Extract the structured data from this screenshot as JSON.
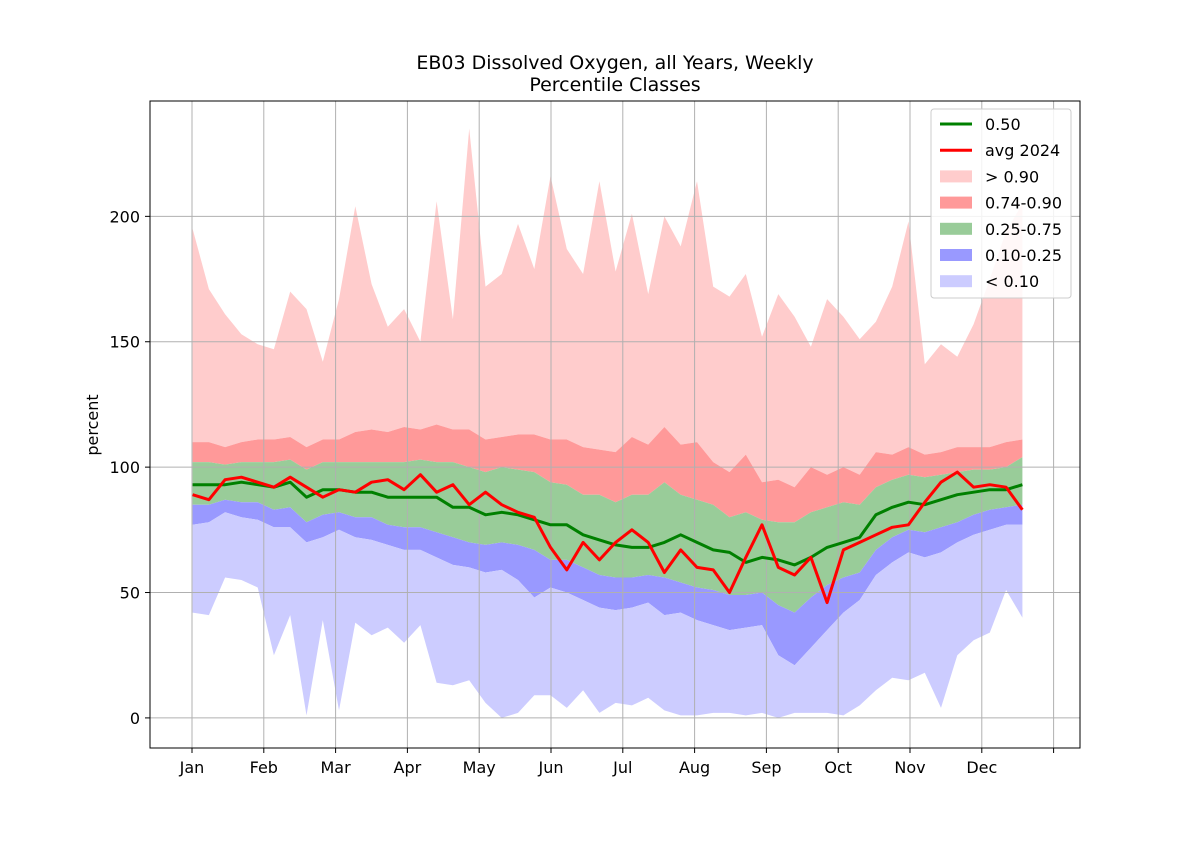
{
  "chart_data": {
    "type": "area",
    "title": "EB03 Dissolved Oxygen, all Years, Weekly",
    "subtitle": "Percentile Classes",
    "xlabel": "",
    "ylabel": "percent",
    "ylim": [
      -12,
      246
    ],
    "yticks": [
      0,
      50,
      100,
      150,
      200
    ],
    "xtick_labels": [
      "Jan",
      "Feb",
      "Mar",
      "Apr",
      "May",
      "Jun",
      "Jul",
      "Aug",
      "Sep",
      "Oct",
      "Nov",
      "Dec",
      ""
    ],
    "grid": true,
    "legend_position": "top-right",
    "colors": {
      "median": "#008000",
      "avg": "#ff0000",
      "gt90": "#ffcccc",
      "p74_90": "#ff9999",
      "p25_75": "#99cc99",
      "p10_25": "#9999ff",
      "lt10": "#ccccff",
      "grid": "#b0b0b0"
    },
    "legend": [
      {
        "label": "0.50",
        "kind": "line",
        "color": "#008000"
      },
      {
        "label": "avg 2024",
        "kind": "line",
        "color": "#ff0000"
      },
      {
        "label": "> 0.90",
        "kind": "patch",
        "color": "#ffcccc"
      },
      {
        "label": "0.74-0.90",
        "kind": "patch",
        "color": "#ff9999"
      },
      {
        "label": "0.25-0.75",
        "kind": "patch",
        "color": "#99cc99"
      },
      {
        "label": "0.10-0.25",
        "kind": "patch",
        "color": "#9999ff"
      },
      {
        "label": "< 0.10",
        "kind": "patch",
        "color": "#ccccff"
      }
    ],
    "weeks": [
      1,
      2,
      3,
      4,
      5,
      6,
      7,
      8,
      9,
      10,
      11,
      12,
      13,
      14,
      15,
      16,
      17,
      18,
      19,
      20,
      21,
      22,
      23,
      24,
      25,
      26,
      27,
      28,
      29,
      30,
      31,
      32,
      33,
      34,
      35,
      36,
      37,
      38,
      39,
      40,
      41,
      42,
      43,
      44,
      45,
      46,
      47,
      48,
      49,
      50,
      51,
      52
    ],
    "series": [
      {
        "name": "max",
        "values": [
          195,
          171,
          161,
          153,
          149,
          147,
          170,
          163,
          142,
          167,
          204,
          173,
          156,
          163,
          150,
          206,
          159,
          235,
          172,
          177,
          197,
          179,
          216,
          187,
          177,
          214,
          178,
          201,
          169,
          200,
          188,
          214,
          172,
          168,
          177,
          152,
          169,
          160,
          148,
          167,
          160,
          151,
          158,
          172,
          198,
          141,
          149,
          144,
          157,
          175,
          194,
          205
        ]
      },
      {
        "name": "p90",
        "values": [
          110,
          110,
          108,
          110,
          111,
          111,
          112,
          108,
          111,
          111,
          114,
          115,
          114,
          116,
          115,
          117,
          115,
          115,
          111,
          112,
          113,
          113,
          111,
          111,
          108,
          107,
          106,
          112,
          109,
          116,
          109,
          110,
          102,
          98,
          105,
          94,
          95,
          92,
          100,
          97,
          100,
          97,
          106,
          105,
          108,
          105,
          106,
          108,
          108,
          108,
          110,
          111
        ]
      },
      {
        "name": "p74",
        "values": [
          102,
          102,
          101,
          102,
          102,
          102,
          103,
          99,
          102,
          102,
          102,
          102,
          102,
          102,
          103,
          102,
          102,
          100,
          98,
          100,
          99,
          98,
          94,
          93,
          89,
          89,
          86,
          89,
          89,
          94,
          89,
          87,
          85,
          80,
          82,
          79,
          78,
          78,
          82,
          84,
          86,
          85,
          92,
          95,
          97,
          96,
          97,
          98,
          99,
          99,
          100,
          104
        ]
      },
      {
        "name": "p25",
        "values": [
          85,
          85,
          87,
          86,
          86,
          83,
          84,
          78,
          81,
          82,
          80,
          80,
          77,
          76,
          76,
          74,
          72,
          70,
          69,
          70,
          69,
          67,
          63,
          63,
          60,
          57,
          56,
          56,
          57,
          56,
          54,
          52,
          51,
          49,
          49,
          50,
          45,
          42,
          48,
          53,
          56,
          58,
          67,
          72,
          75,
          74,
          76,
          78,
          81,
          83,
          84,
          85
        ]
      },
      {
        "name": "p10",
        "values": [
          77,
          78,
          82,
          80,
          79,
          76,
          76,
          70,
          72,
          75,
          72,
          71,
          69,
          67,
          67,
          64,
          61,
          60,
          58,
          59,
          55,
          48,
          52,
          50,
          47,
          44,
          43,
          44,
          46,
          41,
          42,
          39,
          37,
          35,
          36,
          37,
          25,
          21,
          28,
          35,
          42,
          47,
          57,
          62,
          66,
          64,
          66,
          70,
          73,
          75,
          77,
          77
        ]
      },
      {
        "name": "min",
        "values": [
          42,
          41,
          56,
          55,
          52,
          25,
          41,
          1,
          39,
          3,
          38,
          33,
          36,
          30,
          37,
          14,
          13,
          15,
          6,
          0,
          2,
          9,
          9,
          4,
          11,
          2,
          6,
          5,
          8,
          3,
          1,
          1,
          2,
          2,
          1,
          2,
          0,
          2,
          2,
          2,
          1,
          5,
          11,
          16,
          15,
          18,
          4,
          25,
          31,
          34,
          51,
          40
        ]
      },
      {
        "name": "0.50",
        "values": [
          93,
          93,
          93,
          94,
          93,
          92,
          94,
          88,
          91,
          91,
          90,
          90,
          88,
          88,
          88,
          88,
          84,
          84,
          81,
          82,
          81,
          79,
          77,
          77,
          73,
          71,
          69,
          68,
          68,
          70,
          73,
          70,
          67,
          66,
          62,
          64,
          63,
          61,
          64,
          68,
          70,
          72,
          81,
          84,
          86,
          85,
          87,
          89,
          90,
          91,
          91,
          93
        ]
      },
      {
        "name": "avg 2024",
        "values": [
          89,
          87,
          95,
          96,
          94,
          92,
          96,
          92,
          88,
          91,
          90,
          94,
          95,
          91,
          97,
          90,
          93,
          85,
          90,
          85,
          82,
          80,
          68,
          59,
          70,
          63,
          70,
          75,
          70,
          58,
          67,
          60,
          59,
          50,
          64,
          77,
          60,
          57,
          64,
          46,
          67,
          70,
          73,
          76,
          77,
          86,
          94,
          98,
          92,
          93,
          92,
          83
        ]
      }
    ]
  }
}
